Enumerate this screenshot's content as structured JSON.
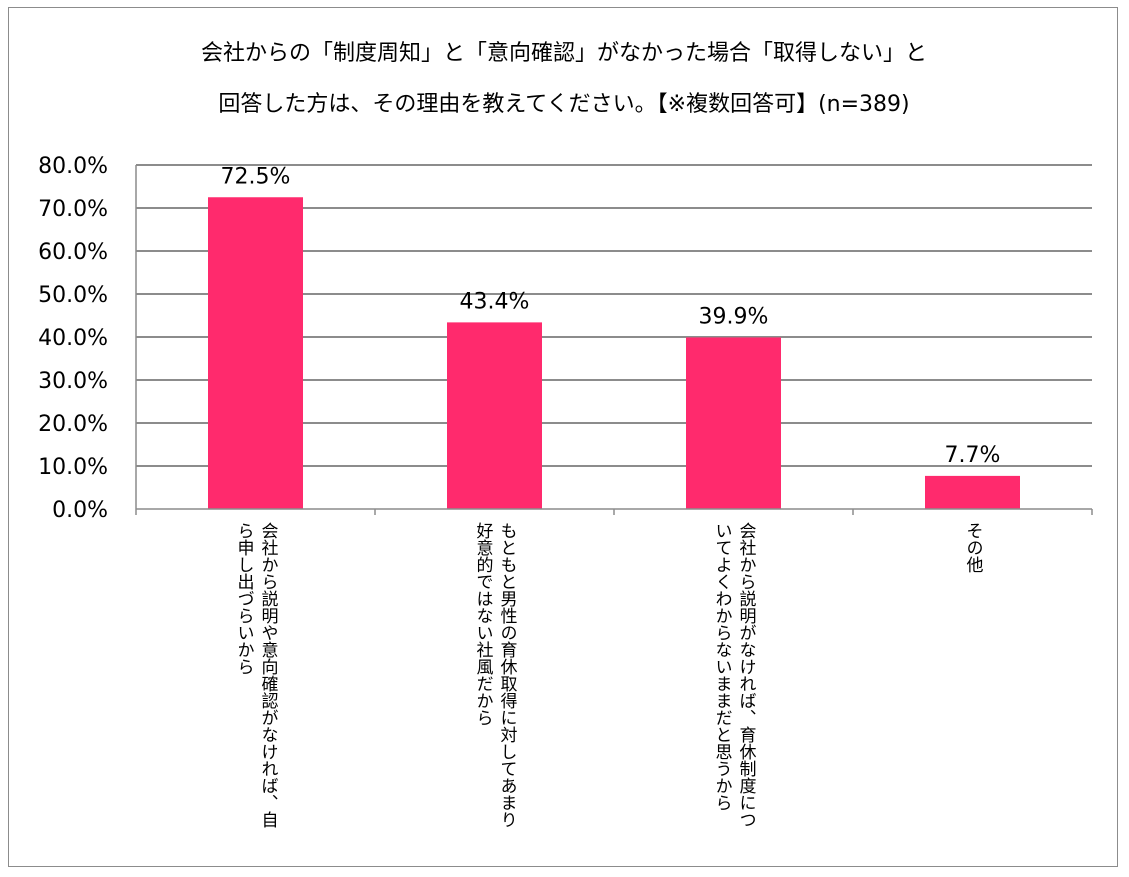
{
  "chart_data": {
    "type": "bar",
    "title_lines": [
      "会社からの「制度周知」と「意向確認」がなかった場合「取得しない」と",
      "回答した方は、その理由を教えてください。【※複数回答可】(n=389)"
    ],
    "categories": [
      "会社から説明や意向確認がなければ、自ら申し出づらいから",
      "もともと男性の育休取得に対してあまり好意的ではない社風だから",
      "会社から説明がなければ、育休制度についてよくわからないままだと思うから",
      "その他"
    ],
    "category_label_lines": [
      [
        "会社から説明や意向確認がなければ、自",
        "ら申し出づらいから"
      ],
      [
        "もともと男性の育休取得に対してあまり",
        "好意的ではない社風だから"
      ],
      [
        "会社から説明がなければ、育休制度につ",
        "いてよくわからないままだと思うから"
      ],
      [
        "その他"
      ]
    ],
    "values": [
      72.5,
      43.4,
      39.9,
      7.7
    ],
    "data_labels": [
      "72.5%",
      "43.4%",
      "39.9%",
      "7.7%"
    ],
    "y_ticks": [
      0,
      10,
      20,
      30,
      40,
      50,
      60,
      70,
      80
    ],
    "y_tick_labels": [
      "0.0%",
      "10.0%",
      "20.0%",
      "30.0%",
      "40.0%",
      "50.0%",
      "60.0%",
      "70.0%",
      "80.0%"
    ],
    "ylim": [
      0,
      80
    ],
    "grid": true,
    "legend": "none",
    "bar_color": "#ff2a6d",
    "xlabel": "",
    "ylabel": ""
  }
}
